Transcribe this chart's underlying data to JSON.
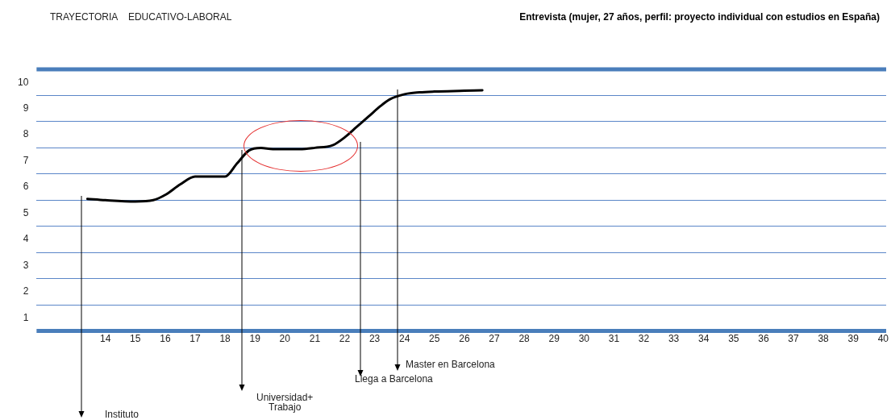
{
  "chart_data": {
    "type": "line",
    "title": "TRAYECTORIA    EDUCATIVO-LABORAL",
    "subtitle": "Entrevista (mujer, 27 años, perfil: proyecto individual con estudios en España)",
    "series": [
      {
        "color": "#000000",
        "x": [
          13.4,
          14,
          15,
          15.6,
          16,
          16.5,
          17,
          17.5,
          18,
          18.4,
          18.8,
          19.2,
          19.6,
          20,
          20.5,
          21,
          21.6,
          22,
          22.4,
          22.8,
          23.2,
          23.5,
          24,
          24.5,
          25,
          26,
          26.6
        ],
        "values": [
          5.55,
          5.5,
          5.45,
          5.5,
          5.7,
          6.1,
          6.4,
          6.4,
          6.4,
          6.9,
          7.4,
          7.5,
          7.45,
          7.45,
          7.45,
          7.5,
          7.6,
          7.9,
          8.3,
          8.7,
          9.1,
          9.35,
          9.55,
          9.62,
          9.65,
          9.68,
          9.7
        ]
      }
    ],
    "xlim": [
      11.7,
      40.1
    ],
    "xticks": [
      14,
      15,
      16,
      17,
      18,
      19,
      20,
      21,
      22,
      23,
      24,
      25,
      26,
      27,
      28,
      29,
      30,
      31,
      32,
      33,
      34,
      35,
      36,
      37,
      38,
      39,
      40
    ],
    "ylim": [
      0.5,
      10.5
    ],
    "yticks": [
      1,
      {
        "value": 1.5,
        "label": null
      },
      2,
      {
        "value": 2.5,
        "label": null
      },
      3,
      {
        "value": 3.5,
        "label": null
      },
      4,
      {
        "value": 4.5,
        "label": null
      },
      5,
      {
        "value": 5.5,
        "label": null
      },
      6,
      {
        "value": 6.5,
        "label": null
      },
      7,
      {
        "value": 7.5,
        "label": null
      },
      8,
      {
        "value": 8.5,
        "label": null
      },
      9,
      {
        "value": 9.5,
        "label": null
      },
      10
    ],
    "grid": "y",
    "legend": false,
    "marker": "none",
    "line_style": "solid",
    "annotations": [
      "Instituto",
      "Universidad+\nTrabajo",
      "Llega a Barcelona",
      "Master en Barcelona"
    ]
  }
}
